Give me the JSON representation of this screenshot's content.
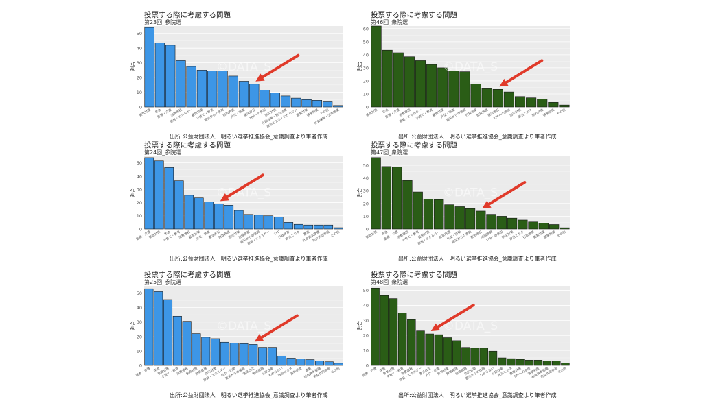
{
  "source_caption": "出所:公益財団法人　明るい選挙推進協会_意識調査より筆者作成",
  "watermark": "©DATA_S",
  "colors": {
    "blue": "#3d96e6",
    "green": "#2a5d16",
    "arrow": "#e03a2a",
    "panel_bg": "#ebebeb",
    "grid": "#ffffff"
  },
  "chart_data": [
    {
      "type": "bar",
      "title": "投票する際に考慮する問題",
      "subtitle": "第23回_参院選",
      "ylabel": "割合",
      "ylim": [
        0,
        55
      ],
      "yticks": [
        0,
        10,
        20,
        30,
        40,
        50
      ],
      "color": "#3d96e6",
      "grid": true,
      "categories": [
        "景気対策",
        "年金",
        "医療・介護",
        "消費増税",
        "原発・エネルギー",
        "雇用対策",
        "子育て・教育",
        "震災からの復興",
        "財政再建",
        "外交・防衛",
        "憲法改正",
        "TPPへの参加",
        "防災対策",
        "行政改革・地方分権",
        "政治とカネ・わからない",
        "農業対策",
        "選挙制度",
        "その他",
        "社会保障・公共事業"
      ],
      "values": [
        54,
        43.5,
        42,
        31.5,
        27.5,
        25,
        24.5,
        24.5,
        21,
        17.5,
        15.5,
        11.5,
        9.5,
        7.5,
        6,
        5,
        4.5,
        3.5,
        1
      ],
      "annotation": "arrow pointing at 憲法改正"
    },
    {
      "type": "bar",
      "title": "投票する際に考慮する問題",
      "subtitle": "第46回_衆院選",
      "ylabel": "割合",
      "ylim": [
        0,
        62
      ],
      "yticks": [
        0,
        10,
        20,
        30,
        40,
        50,
        60
      ],
      "color": "#2a5d16",
      "grid": true,
      "categories": [
        "景気対策",
        "年金",
        "医療・介護",
        "消費増税",
        "原発・エネルギー",
        "子育て・教育",
        "雇用対策",
        "外交・防衛",
        "震災からの復興",
        "行政改革",
        "財政再建",
        "憲法改正",
        "TPPへの参加",
        "防災対策",
        "政治とカネ",
        "地方分権",
        "選挙制度",
        "その他"
      ],
      "values": [
        62,
        43.5,
        41.5,
        38.5,
        35.5,
        32.5,
        30,
        27.5,
        27,
        17.5,
        14,
        13.5,
        11.5,
        8,
        7,
        6,
        3.5,
        1.5
      ],
      "annotation": "arrow pointing at 憲法改正"
    },
    {
      "type": "bar",
      "title": "投票する際に考慮する問題",
      "subtitle": "第24回_参院選",
      "ylabel": "割合",
      "ylim": [
        0,
        55
      ],
      "yticks": [
        0,
        10,
        20,
        30,
        40,
        50
      ],
      "color": "#3d96e6",
      "grid": true,
      "categories": [
        "医療・介護",
        "景気対策",
        "年金",
        "子育て・教育",
        "消費増税",
        "雇用対策",
        "外交・防衛",
        "憲法改正",
        "財政再建",
        "防災対策",
        "地域振興",
        "震災からの復興",
        "原発・エネルギー",
        "TPP",
        "行政改革",
        "政治とカネ",
        "農業",
        "社会資本整備",
        "男女共同参画",
        "その他"
      ],
      "values": [
        54,
        51.5,
        46.5,
        36.5,
        25.5,
        23.5,
        20.5,
        19,
        18,
        14,
        11,
        10.5,
        10,
        9,
        5,
        3.5,
        3,
        3,
        3,
        1
      ],
      "annotation": "arrow pointing at 憲法改正"
    },
    {
      "type": "bar",
      "title": "投票する際に考慮する問題",
      "subtitle": "第47回_衆院選",
      "ylabel": "割合",
      "ylim": [
        0,
        57
      ],
      "yticks": [
        0,
        10,
        20,
        30,
        40,
        50
      ],
      "color": "#2a5d16",
      "grid": true,
      "categories": [
        "景気対策",
        "年金",
        "医療・介護",
        "消費増税",
        "子育て・教育",
        "雇用対策",
        "原発・エネルギー",
        "財政再建",
        "外交・防衛",
        "震災からの復興",
        "憲法改正",
        "地域振興",
        "TPPへの参加",
        "防災対策",
        "政治とカネ",
        "行政改革",
        "農業対策",
        "選挙制度",
        "その他"
      ],
      "values": [
        56,
        49,
        48.5,
        38,
        29,
        23.5,
        23,
        19,
        17.5,
        16,
        14,
        11.5,
        10,
        8.5,
        7,
        5.5,
        4.5,
        3.5,
        1
      ],
      "annotation": "arrow pointing at 憲法改正"
    },
    {
      "type": "bar",
      "title": "投票する際に考慮する問題",
      "subtitle": "第25回_参院選",
      "ylabel": "割合",
      "ylim": [
        0,
        55
      ],
      "yticks": [
        0,
        10,
        20,
        30,
        40,
        50
      ],
      "color": "#3d96e6",
      "grid": true,
      "categories": [
        "医療・介護",
        "年金",
        "景気対策",
        "子育て・教育",
        "消費増税",
        "雇用対策",
        "財政再建",
        "防災対策",
        "原発・エネルギー",
        "外交・防衛",
        "震災からの復興",
        "憲法改正",
        "地域振興",
        "行政改革",
        "わからない",
        "政治とカネ",
        "選挙制度",
        "農業",
        "社会資本整備",
        "男女共同参画",
        "その他"
      ],
      "values": [
        53,
        51,
        45.5,
        34,
        30.5,
        22,
        19.5,
        18.5,
        16,
        15.5,
        15,
        14.5,
        12.5,
        12.5,
        6.5,
        5,
        4.5,
        4,
        3,
        2.5,
        1.5
      ],
      "annotation": "arrow pointing at 憲法改正"
    },
    {
      "type": "bar",
      "title": "投票する際に考慮する問題",
      "subtitle": "第48回_衆院選",
      "ylabel": "割合",
      "ylim": [
        0,
        53
      ],
      "yticks": [
        0,
        10,
        20,
        30,
        40,
        50
      ],
      "color": "#2a5d16",
      "grid": true,
      "categories": [
        "医療・介護",
        "年金",
        "景気対策",
        "子育て・教育",
        "消費増税",
        "原発・エネルギー",
        "憲法改正",
        "外交・防衛",
        "雇用対策",
        "財政再建",
        "地域振興",
        "防災対策",
        "震災からの復興",
        "わからない",
        "行政改革",
        "政治とカネ",
        "農業対策",
        "TPPへの参加",
        "選挙制度",
        "社会資本整備",
        "男女共同参画",
        "その他"
      ],
      "values": [
        51.5,
        46.5,
        44.5,
        35,
        30.5,
        23,
        21,
        20.5,
        18.5,
        16.5,
        12,
        11.5,
        11.5,
        9.5,
        5,
        4.5,
        4,
        3.5,
        3.5,
        3,
        3,
        1.5
      ],
      "annotation": "arrow pointing at 憲法改正"
    }
  ]
}
